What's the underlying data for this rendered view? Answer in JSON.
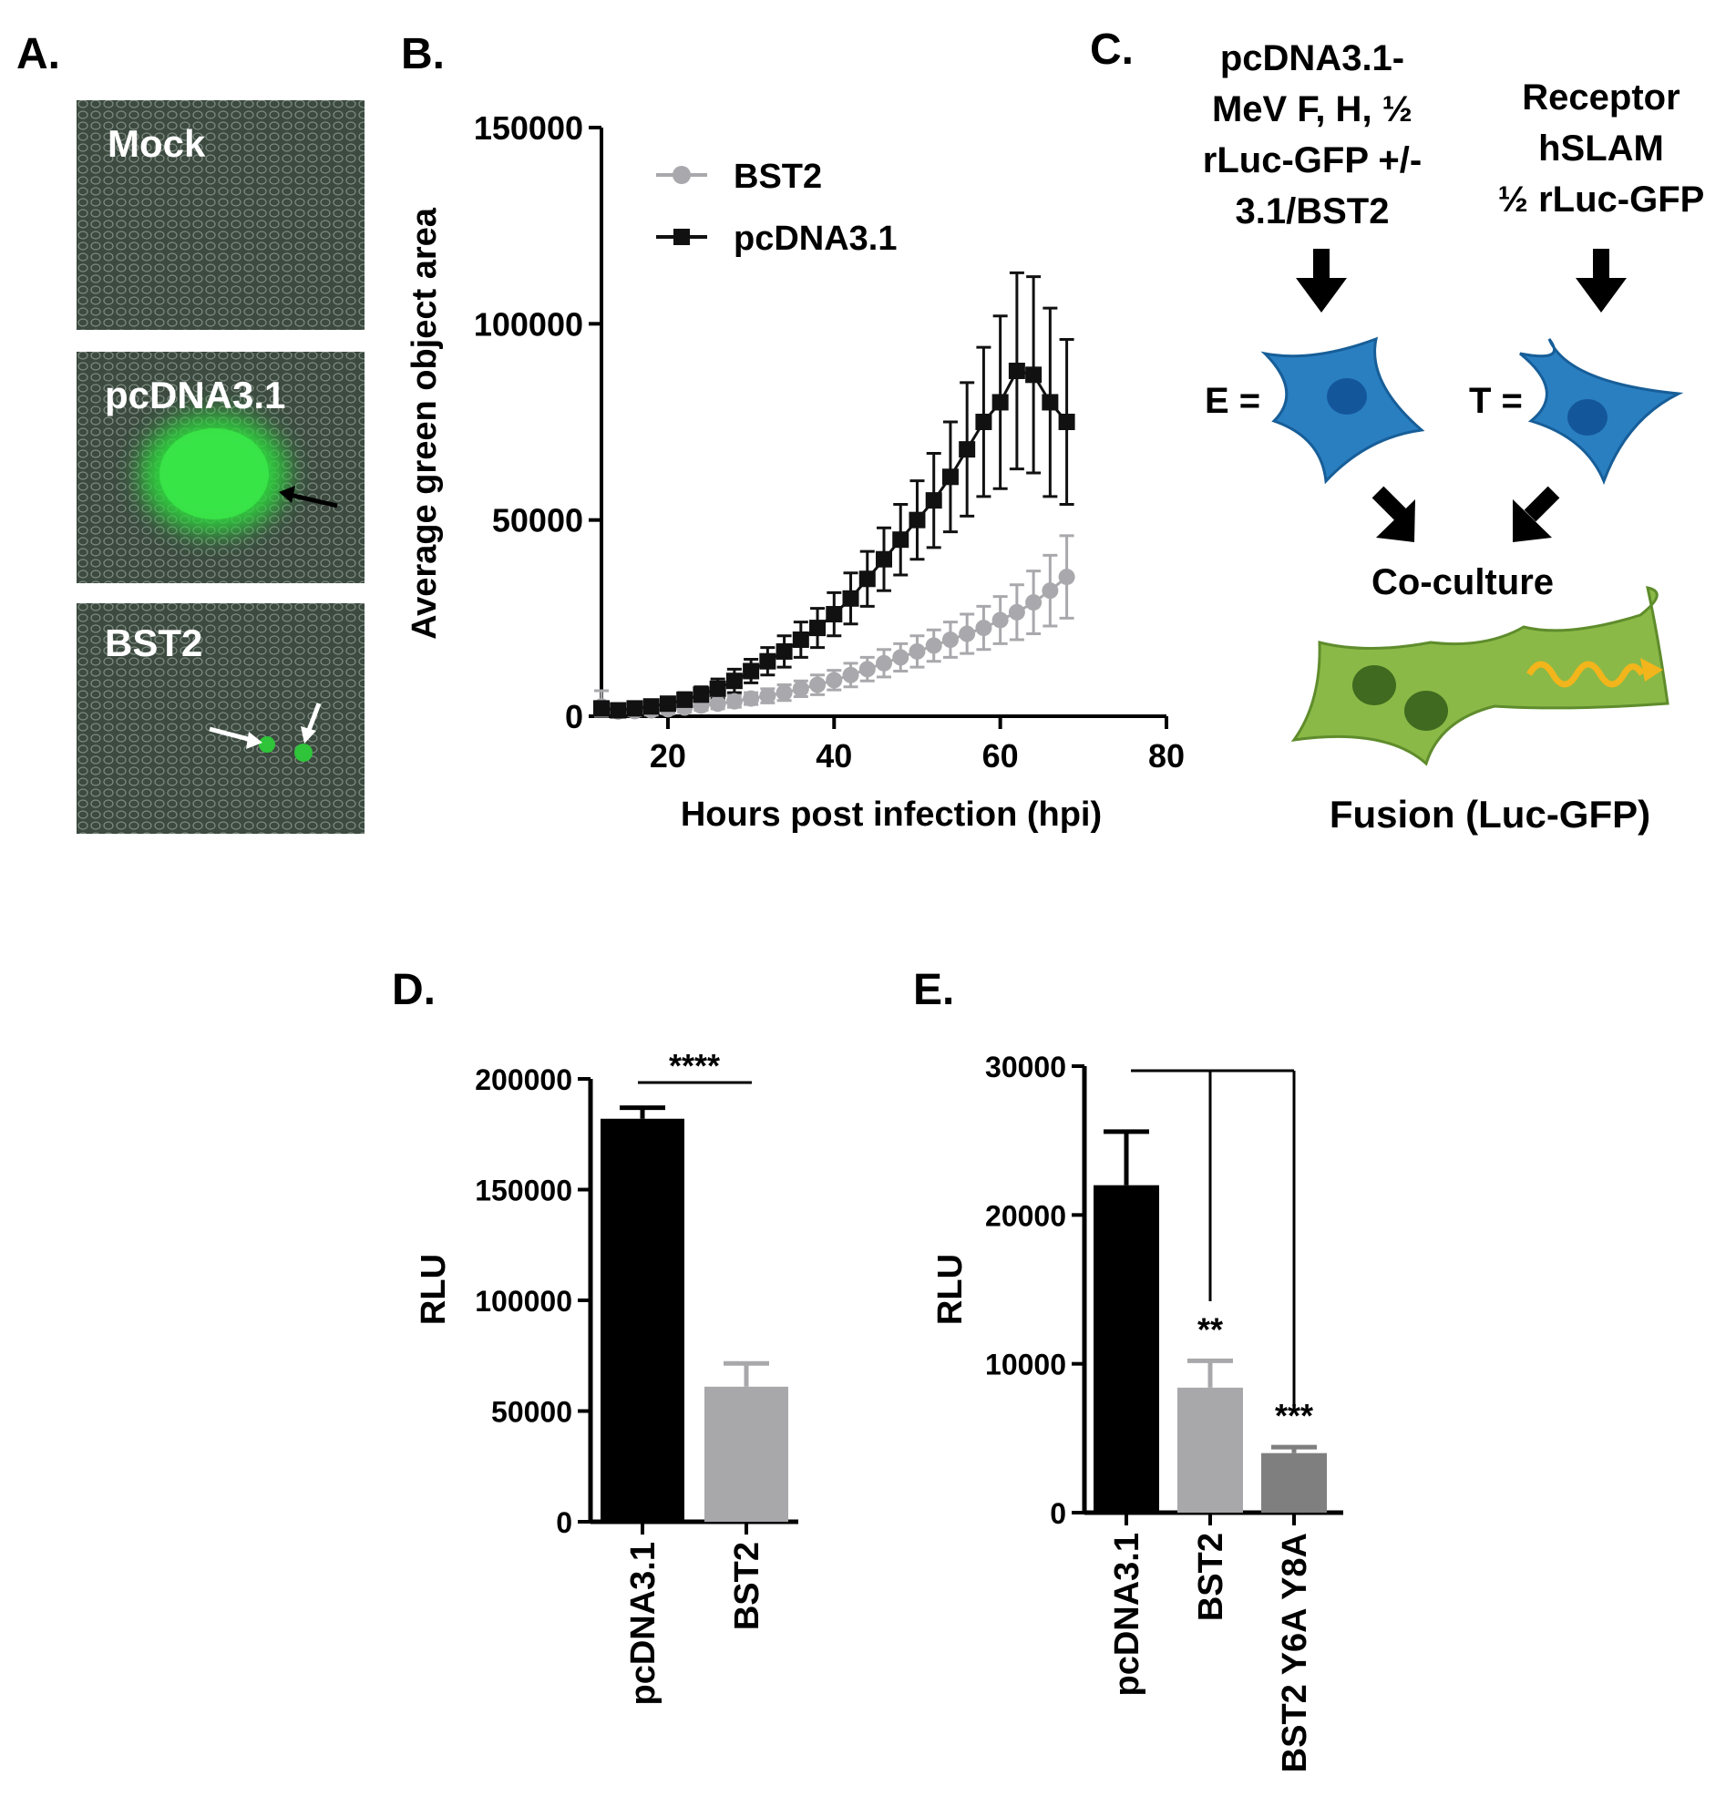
{
  "panels": {
    "a": {
      "letter": "A.",
      "images": [
        {
          "label": "Mock"
        },
        {
          "label": "pcDNA3.1"
        },
        {
          "label": "BST2"
        }
      ]
    },
    "b": {
      "letter": "B."
    },
    "c": {
      "letter": "C.",
      "effector_lines": [
        "pcDNA3.1-",
        "MeV F, H, ½",
        "rLuc-GFP +/-",
        "3.1/BST2"
      ],
      "target_lines": [
        "Receptor",
        "hSLAM",
        "½ rLuc-GFP"
      ],
      "effector_label": "E =",
      "target_label": "T =",
      "coculture": "Co-culture",
      "fusion": "Fusion (Luc-GFP)",
      "colors": {
        "cell_blue": "#2a7fc1",
        "nucleus_blue": "#14569a",
        "fused_green": "#8ab947",
        "nucleus_green": "#3f6a1f",
        "signal": "#f2b51b"
      }
    },
    "d": {
      "letter": "D."
    },
    "e": {
      "letter": "E."
    }
  },
  "chart_data": [
    {
      "id": "B",
      "type": "line",
      "title": "",
      "xlabel": "Hours post infection (hpi)",
      "ylabel": "Average green object area",
      "xlim": [
        12,
        80
      ],
      "ylim": [
        0,
        150000
      ],
      "xticks": [
        "20",
        "40",
        "60",
        "80"
      ],
      "yticks": [
        "0",
        "50000",
        "100000",
        "150000"
      ],
      "legend_position": "top-left",
      "x": [
        12,
        14,
        16,
        18,
        20,
        22,
        24,
        26,
        28,
        30,
        32,
        34,
        36,
        38,
        40,
        42,
        44,
        46,
        48,
        50,
        52,
        54,
        56,
        58,
        60,
        62,
        64,
        66,
        68
      ],
      "series": [
        {
          "name": "BST2",
          "color": "#a9a9ad",
          "marker": "circle",
          "values": [
            2500,
            1200,
            1300,
            1500,
            1800,
            2200,
            2700,
            3200,
            3800,
            4500,
            5200,
            6000,
            7000,
            8000,
            9200,
            10500,
            12000,
            13500,
            15000,
            16500,
            18000,
            19500,
            21000,
            22500,
            24500,
            26500,
            29000,
            32000,
            35500
          ],
          "errors": [
            4000,
            1500,
            1200,
            1200,
            1200,
            1200,
            1200,
            1300,
            1500,
            1500,
            1800,
            2000,
            2000,
            2500,
            2500,
            3000,
            3000,
            3500,
            3500,
            4000,
            4000,
            4500,
            5000,
            5500,
            6000,
            7000,
            8000,
            9000,
            10500
          ]
        },
        {
          "name": "pcDNA3.1",
          "color": "#111111",
          "marker": "square",
          "values": [
            2000,
            1500,
            2000,
            2500,
            3200,
            4200,
            5500,
            7000,
            9000,
            11500,
            14000,
            16500,
            19500,
            22500,
            26000,
            30000,
            35000,
            40000,
            45000,
            50000,
            55000,
            61000,
            68000,
            75000,
            80000,
            88000,
            87000,
            80000,
            75000
          ],
          "errors": [
            1500,
            1200,
            1200,
            1300,
            1500,
            1800,
            2000,
            2500,
            3000,
            3000,
            3500,
            4000,
            4500,
            5000,
            5500,
            6500,
            7000,
            8000,
            9000,
            10000,
            12000,
            14000,
            17000,
            19000,
            22000,
            25000,
            25000,
            24000,
            21000
          ]
        }
      ]
    },
    {
      "id": "D",
      "type": "bar",
      "title": "",
      "xlabel": "",
      "ylabel": "RLU",
      "ylim": [
        0,
        200000
      ],
      "yticks": [
        "0",
        "50000",
        "100000",
        "150000",
        "200000"
      ],
      "categories": [
        "pcDNA3.1",
        "BST2"
      ],
      "values": [
        182000,
        61000
      ],
      "errors": [
        5000,
        10500
      ],
      "colors": [
        "#000000",
        "#a8a8ab"
      ],
      "significance": "****"
    },
    {
      "id": "E",
      "type": "bar",
      "title": "",
      "xlabel": "",
      "ylabel": "RLU",
      "ylim": [
        0,
        30000
      ],
      "yticks": [
        "0",
        "10000",
        "20000",
        "30000"
      ],
      "categories": [
        "pcDNA3.1",
        "BST2",
        "BST2 Y6A Y8A"
      ],
      "values": [
        22000,
        8400,
        4000
      ],
      "errors": [
        3600,
        1800,
        400
      ],
      "colors": [
        "#000000",
        "#a8a8ab",
        "#7f7f7f"
      ],
      "significance": [
        "",
        "**",
        "***"
      ]
    }
  ]
}
